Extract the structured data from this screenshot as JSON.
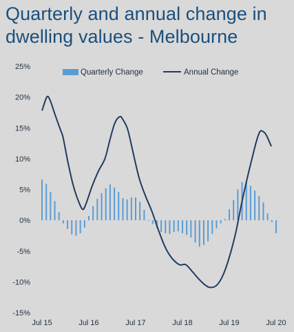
{
  "chart_data": {
    "type": "bar+line",
    "title": "Quarterly and annual change in dwelling values - Melbourne",
    "colors": {
      "quarterly": "#5b9bd5",
      "annual": "#1f3a5f",
      "text": "#1f2d3d",
      "title": "#1b4f7d"
    },
    "ylim": [
      -15,
      25
    ],
    "y_ticks": [
      "25%",
      "20%",
      "15%",
      "10%",
      "5%",
      "0%",
      "-5%",
      "-10%",
      "-15%"
    ],
    "y_tick_values": [
      25,
      20,
      15,
      10,
      5,
      0,
      -5,
      -10,
      -15
    ],
    "x_ticks": [
      "Jul 15",
      "Jul 16",
      "Jul 17",
      "Jul 18",
      "Jul 19",
      "Jul 20"
    ],
    "legend": {
      "position": "top",
      "entries": [
        "Quarterly Change",
        "Annual Change"
      ]
    },
    "x_range_months": [
      "Jul 15",
      "Jul 20"
    ],
    "series": [
      {
        "name": "Quarterly Change",
        "type": "bar",
        "values": [
          6.6,
          5.9,
          4.6,
          3.1,
          1.3,
          -0.5,
          -1.4,
          -2.3,
          -2.5,
          -2.1,
          -1.2,
          0.7,
          2.3,
          3.5,
          4.4,
          5.2,
          5.8,
          5.3,
          4.6,
          3.6,
          3.4,
          3.7,
          3.7,
          3.0,
          1.7,
          -0.1,
          -0.6,
          -1.3,
          -1.9,
          -2.1,
          -2.2,
          -1.9,
          -1.8,
          -2.1,
          -2.4,
          -2.8,
          -3.6,
          -4.3,
          -4.0,
          -3.4,
          -2.2,
          -1.3,
          -0.5,
          0.2,
          1.8,
          3.3,
          5.0,
          6.2,
          6.3,
          5.6,
          4.8,
          3.9,
          2.9,
          1.1,
          -0.3,
          -2.1
        ]
      },
      {
        "name": "Annual Change",
        "type": "line",
        "points": [
          [
            0,
            17.8
          ],
          [
            3,
            20.0
          ],
          [
            5,
            19.5
          ],
          [
            8,
            17.2
          ],
          [
            11,
            15.0
          ],
          [
            13,
            13.5
          ],
          [
            16,
            9.5
          ],
          [
            19,
            6.0
          ],
          [
            22,
            3.5
          ],
          [
            25,
            1.8
          ],
          [
            27,
            2.5
          ],
          [
            31,
            5.5
          ],
          [
            35,
            8.0
          ],
          [
            39,
            10.0
          ],
          [
            42,
            13.0
          ],
          [
            45,
            15.7
          ],
          [
            48,
            16.8
          ],
          [
            50,
            16.4
          ],
          [
            53,
            14.8
          ],
          [
            56,
            11.5
          ],
          [
            60,
            7.0
          ],
          [
            64,
            4.0
          ],
          [
            68,
            1.5
          ],
          [
            72,
            -1.5
          ],
          [
            76,
            -4.2
          ],
          [
            80,
            -6.0
          ],
          [
            85,
            -7.2
          ],
          [
            89,
            -7.2
          ],
          [
            93,
            -8.3
          ],
          [
            97,
            -9.5
          ],
          [
            101,
            -10.5
          ],
          [
            104,
            -10.9
          ],
          [
            108,
            -10.6
          ],
          [
            112,
            -9.0
          ],
          [
            116,
            -6.0
          ],
          [
            120,
            -2.0
          ],
          [
            124,
            3.2
          ],
          [
            128,
            7.8
          ],
          [
            131,
            11.0
          ],
          [
            133,
            13.0
          ],
          [
            135,
            14.4
          ],
          [
            137,
            14.4
          ],
          [
            139,
            13.8
          ],
          [
            142,
            12.0
          ]
        ]
      }
    ]
  }
}
